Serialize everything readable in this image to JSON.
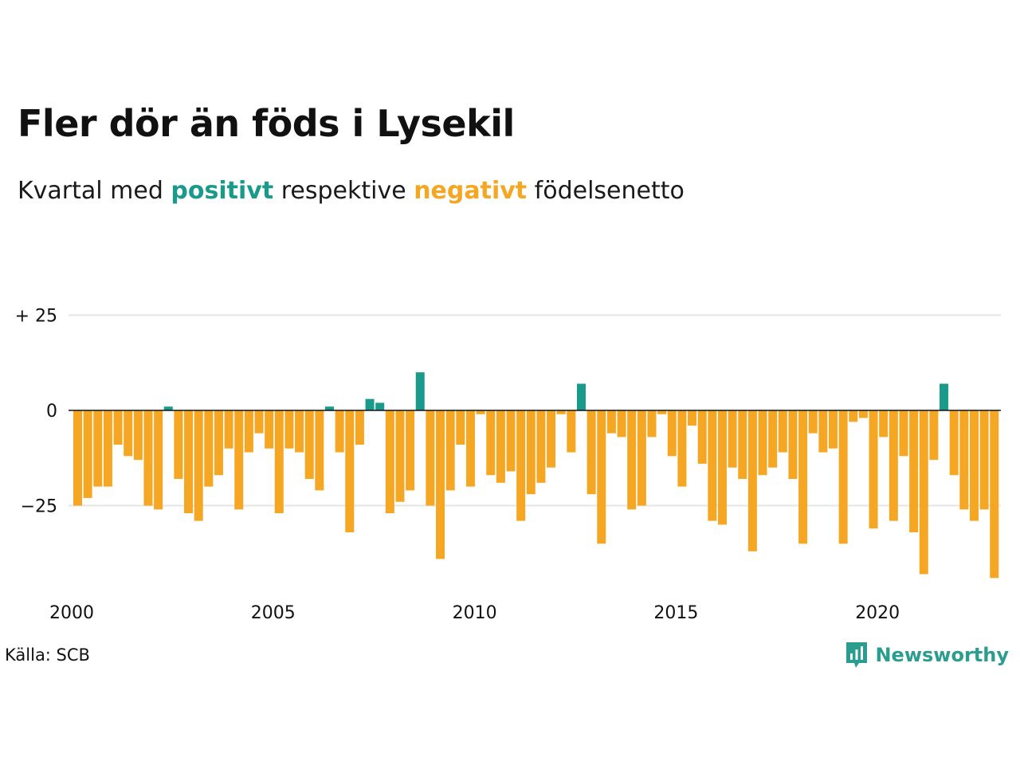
{
  "title": "Fler dör än föds i Lysekil",
  "subtitle": {
    "prefix": "Kvartal med ",
    "positive_word": "positivt",
    "middle": " respektive ",
    "negative_word": "negativt",
    "suffix": " födelsenetto"
  },
  "source": "Källa: SCB",
  "brand": {
    "name": "Newsworthy",
    "logo_icon": "bar-chart-speech-bubble-icon"
  },
  "colors": {
    "positive": "#1a9a8a",
    "negative": "#f5a623",
    "grid": "#e6e6e6",
    "text": "#111111"
  },
  "chart_data": {
    "type": "bar",
    "x_start": "2000 Q1",
    "x_ticks": [
      "2000",
      "2005",
      "2010",
      "2015",
      "2020"
    ],
    "y_ticks": [
      {
        "value": 25,
        "label": "+ 25"
      },
      {
        "value": 0,
        "label": "0"
      },
      {
        "value": -25,
        "label": "−25"
      }
    ],
    "ylim": [
      -45,
      25
    ],
    "grid": true,
    "values": [
      -25,
      -23,
      -20,
      -20,
      -9,
      -12,
      -13,
      -25,
      -26,
      1,
      -18,
      -27,
      -29,
      -20,
      -17,
      -10,
      -26,
      -11,
      -6,
      -10,
      -27,
      -10,
      -11,
      -18,
      -21,
      1,
      -11,
      -32,
      -9,
      3,
      2,
      -27,
      -24,
      -21,
      10,
      -25,
      -39,
      -21,
      -9,
      -20,
      -1,
      -17,
      -19,
      -16,
      -29,
      -22,
      -19,
      -15,
      -1,
      -11,
      7,
      -22,
      -35,
      -6,
      -7,
      -26,
      -25,
      -7,
      -1,
      -12,
      -20,
      -4,
      -14,
      -29,
      -30,
      -15,
      -18,
      -37,
      -17,
      -15,
      -11,
      -18,
      -35,
      -6,
      -11,
      -10,
      -35,
      -3,
      -2,
      -31,
      -7,
      -29,
      -12,
      -32,
      -43,
      -13,
      7,
      -17,
      -26,
      -29,
      -26,
      -44
    ]
  }
}
